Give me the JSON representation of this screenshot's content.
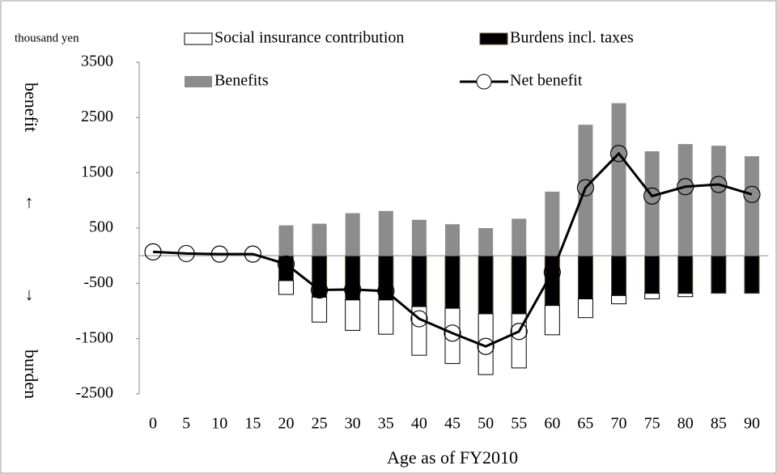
{
  "chart_data": {
    "type": "bar-line",
    "y_unit_label": "thousand yen",
    "annotations": [
      "benefit",
      "↑",
      "↓",
      "burden"
    ],
    "x_label": "Age as of FY2010",
    "categories": [
      "0",
      "5",
      "10",
      "15",
      "20",
      "25",
      "30",
      "35",
      "40",
      "45",
      "50",
      "55",
      "60",
      "65",
      "70",
      "75",
      "80",
      "85",
      "90"
    ],
    "series": [
      {
        "name": "Social insurance contribution",
        "kind": "bar",
        "color": "#ffffff",
        "values": [
          0,
          0,
          0,
          0,
          -250,
          -450,
          -550,
          -620,
          -880,
          -1000,
          -1100,
          -980,
          -530,
          -340,
          -150,
          -100,
          -60,
          0,
          0
        ]
      },
      {
        "name": "Burdens incl. taxes",
        "kind": "bar",
        "color": "#000000",
        "values": [
          0,
          0,
          0,
          0,
          -450,
          -750,
          -800,
          -800,
          -920,
          -950,
          -1050,
          -1050,
          -900,
          -780,
          -720,
          -680,
          -680,
          -680,
          -680
        ]
      },
      {
        "name": "Benefits",
        "kind": "bar",
        "color": "#8c8c8c",
        "values": [
          0,
          0,
          0,
          0,
          550,
          580,
          770,
          810,
          650,
          570,
          500,
          670,
          1160,
          2370,
          2760,
          1890,
          2020,
          1990,
          1800
        ]
      },
      {
        "name": "Net benefit",
        "kind": "line",
        "color": "#000000",
        "values": [
          70,
          40,
          30,
          30,
          -150,
          -620,
          -610,
          -640,
          -1140,
          -1400,
          -1640,
          -1370,
          -300,
          1230,
          1850,
          1080,
          1250,
          1290,
          1110
        ]
      }
    ],
    "ylim": [
      -2500,
      3500
    ],
    "yticks": [
      3500,
      2500,
      1500,
      500,
      -500,
      -1500,
      -2500
    ]
  }
}
